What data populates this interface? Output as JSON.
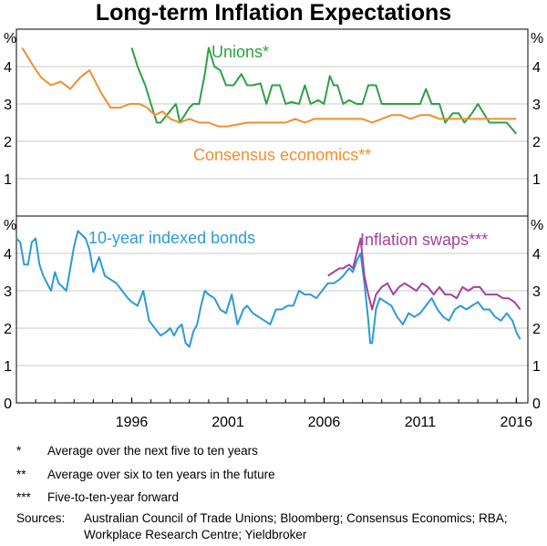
{
  "title": "Long-term Inflation Expectations",
  "colors": {
    "unions": "#2ea043",
    "consensus": "#f28e2b",
    "bonds": "#2b9bd6",
    "swaps": "#a3439c"
  },
  "chart_data": [
    {
      "type": "line",
      "panel": "top",
      "ylabel_left": "%",
      "ylabel_right": "%",
      "ylim": [
        0,
        5
      ],
      "yticks": [
        "1",
        "2",
        "3",
        "4"
      ],
      "labels": {
        "unions": "Unions*",
        "consensus": "Consensus economics**"
      },
      "series": [
        {
          "name": "Unions*",
          "color_key": "unions",
          "x": [
            1996.0,
            1996.3,
            1996.7,
            1997.0,
            1997.3,
            1997.5,
            1998.3,
            1998.5,
            1999.0,
            1999.2,
            1999.5,
            1999.8,
            2000.0,
            2000.3,
            2000.6,
            2000.9,
            2001.3,
            2001.7,
            2002.0,
            2002.3,
            2002.7,
            2003.0,
            2003.3,
            2003.7,
            2004.0,
            2004.3,
            2004.7,
            2005.0,
            2005.3,
            2005.7,
            2006.0,
            2006.3,
            2006.5,
            2006.7,
            2007.0,
            2007.3,
            2007.7,
            2008.0,
            2008.3,
            2008.7,
            2009.0,
            2009.5,
            2010.0,
            2010.5,
            2011.0,
            2011.3,
            2011.6,
            2012.0,
            2012.3,
            2012.7,
            2013.0,
            2013.3,
            2013.7,
            2014.0,
            2014.3,
            2014.6,
            2015.0,
            2015.5,
            2016.0
          ],
          "values": [
            4.5,
            4.0,
            3.5,
            3.0,
            2.5,
            2.5,
            3.0,
            2.5,
            2.9,
            3.0,
            3.0,
            3.8,
            4.5,
            4.0,
            3.9,
            3.5,
            3.5,
            3.8,
            3.5,
            3.5,
            3.55,
            3.0,
            3.5,
            3.5,
            3.0,
            3.05,
            3.0,
            3.5,
            3.0,
            3.1,
            3.0,
            3.75,
            3.5,
            3.5,
            3.0,
            3.1,
            3.0,
            3.0,
            3.5,
            3.5,
            3.0,
            3.0,
            3.0,
            3.0,
            3.0,
            3.4,
            3.0,
            3.0,
            2.5,
            2.75,
            2.75,
            2.5,
            2.75,
            3.0,
            2.75,
            2.5,
            2.5,
            2.5,
            2.2
          ]
        },
        {
          "name": "Consensus economics**",
          "color_key": "consensus",
          "x": [
            1990.3,
            1990.9,
            1991.3,
            1991.8,
            1992.3,
            1992.8,
            1993.3,
            1993.8,
            1994.4,
            1994.9,
            1995.4,
            1995.9,
            1996.4,
            1996.8,
            1997.2,
            1997.6,
            1998.0,
            1998.5,
            1999.0,
            1999.5,
            2000.0,
            2000.5,
            2001.0,
            2002.0,
            2003.0,
            2004.0,
            2004.5,
            2005.0,
            2005.5,
            2006.0,
            2007.0,
            2008.0,
            2008.5,
            2009.0,
            2009.5,
            2010.0,
            2010.5,
            2011.0,
            2011.5,
            2012.0,
            2012.5,
            2013.0,
            2013.5,
            2014.0,
            2015.0,
            2016.0
          ],
          "values": [
            4.5,
            4.0,
            3.7,
            3.5,
            3.6,
            3.4,
            3.7,
            3.9,
            3.3,
            2.9,
            2.9,
            3.0,
            3.0,
            2.9,
            2.7,
            2.8,
            2.6,
            2.5,
            2.6,
            2.5,
            2.5,
            2.4,
            2.4,
            2.5,
            2.5,
            2.5,
            2.6,
            2.5,
            2.6,
            2.6,
            2.6,
            2.6,
            2.5,
            2.6,
            2.7,
            2.7,
            2.6,
            2.7,
            2.7,
            2.6,
            2.6,
            2.6,
            2.6,
            2.6,
            2.6,
            2.6
          ]
        }
      ]
    },
    {
      "type": "line",
      "panel": "bottom",
      "ylabel_left": "%",
      "ylabel_right": "%",
      "ylim": [
        0,
        5
      ],
      "yticks": [
        "0",
        "1",
        "2",
        "3",
        "4"
      ],
      "xlim": [
        1990.0,
        2016.6
      ],
      "xticks": [
        "1996",
        "2001",
        "2006",
        "2011",
        "2016"
      ],
      "labels": {
        "bonds": "10-year indexed bonds",
        "swaps": "Inflation swaps***"
      },
      "series": [
        {
          "name": "10-year indexed bonds",
          "color_key": "bonds",
          "x": [
            1990.0,
            1990.2,
            1990.4,
            1990.6,
            1990.8,
            1991.0,
            1991.2,
            1991.4,
            1991.6,
            1991.8,
            1992.0,
            1992.2,
            1992.4,
            1992.6,
            1992.8,
            1993.0,
            1993.2,
            1993.4,
            1993.6,
            1993.8,
            1994.0,
            1994.3,
            1994.6,
            1994.9,
            1995.2,
            1995.5,
            1995.8,
            1996.0,
            1996.3,
            1996.6,
            1996.9,
            1997.2,
            1997.5,
            1997.8,
            1998.0,
            1998.2,
            1998.4,
            1998.6,
            1998.8,
            1999.0,
            1999.2,
            1999.4,
            1999.6,
            1999.8,
            2000.0,
            2000.3,
            2000.6,
            2000.9,
            2001.2,
            2001.5,
            2001.8,
            2002.0,
            2002.3,
            2002.6,
            2002.9,
            2003.2,
            2003.5,
            2003.8,
            2004.1,
            2004.4,
            2004.7,
            2005.0,
            2005.3,
            2005.6,
            2005.9,
            2006.2,
            2006.5,
            2006.8,
            2007.0,
            2007.3,
            2007.5,
            2007.7,
            2007.9,
            2008.1,
            2008.3,
            2008.4,
            2008.5,
            2008.7,
            2008.9,
            2009.2,
            2009.5,
            2009.8,
            2010.1,
            2010.4,
            2010.7,
            2011.0,
            2011.3,
            2011.6,
            2011.9,
            2012.2,
            2012.5,
            2012.8,
            2013.1,
            2013.4,
            2013.7,
            2014.0,
            2014.3,
            2014.6,
            2014.9,
            2015.2,
            2015.5,
            2015.8,
            2016.0,
            2016.2
          ],
          "values": [
            4.4,
            4.3,
            3.7,
            3.7,
            4.3,
            4.4,
            3.7,
            3.4,
            3.2,
            3.0,
            3.5,
            3.2,
            3.1,
            3.0,
            3.6,
            4.2,
            4.6,
            4.5,
            4.4,
            4.1,
            3.5,
            3.9,
            3.4,
            3.3,
            3.2,
            3.0,
            2.8,
            2.7,
            2.6,
            3.0,
            2.2,
            2.0,
            1.8,
            1.9,
            2.0,
            1.8,
            2.0,
            2.1,
            1.6,
            1.5,
            1.9,
            2.1,
            2.6,
            3.0,
            2.9,
            2.8,
            2.5,
            2.4,
            2.9,
            2.1,
            2.5,
            2.6,
            2.4,
            2.3,
            2.2,
            2.1,
            2.5,
            2.5,
            2.6,
            2.6,
            3.0,
            2.9,
            2.9,
            2.8,
            3.0,
            3.2,
            3.2,
            3.3,
            3.4,
            3.6,
            3.5,
            3.8,
            4.0,
            3.2,
            2.2,
            1.6,
            1.6,
            2.5,
            2.8,
            2.7,
            2.6,
            2.3,
            2.1,
            2.4,
            2.3,
            2.4,
            2.6,
            2.8,
            2.5,
            2.3,
            2.2,
            2.5,
            2.6,
            2.5,
            2.6,
            2.7,
            2.5,
            2.5,
            2.3,
            2.2,
            2.4,
            2.2,
            1.9,
            1.7
          ]
        },
        {
          "name": "Inflation swaps***",
          "color_key": "swaps",
          "x": [
            2006.2,
            2006.5,
            2006.8,
            2007.0,
            2007.3,
            2007.5,
            2007.7,
            2007.9,
            2008.1,
            2008.3,
            2008.5,
            2008.7,
            2009.0,
            2009.3,
            2009.6,
            2009.9,
            2010.2,
            2010.5,
            2010.8,
            2011.1,
            2011.4,
            2011.7,
            2012.0,
            2012.3,
            2012.6,
            2012.9,
            2013.2,
            2013.5,
            2013.8,
            2014.1,
            2014.4,
            2014.7,
            2015.0,
            2015.3,
            2015.6,
            2015.9,
            2016.2
          ],
          "values": [
            3.4,
            3.5,
            3.6,
            3.6,
            3.7,
            3.6,
            4.0,
            4.4,
            3.4,
            2.9,
            2.5,
            2.9,
            3.1,
            3.2,
            2.9,
            3.1,
            3.2,
            3.1,
            3.0,
            3.2,
            3.1,
            2.9,
            3.1,
            2.9,
            2.9,
            2.8,
            3.1,
            3.0,
            3.1,
            3.1,
            2.9,
            2.9,
            2.9,
            2.8,
            2.8,
            2.7,
            2.5
          ]
        }
      ]
    }
  ],
  "notes": [
    {
      "mark": "*",
      "text": "Average over the next five to ten years"
    },
    {
      "mark": "**",
      "text": "Average over six to ten years in the future"
    },
    {
      "mark": "***",
      "text": "Five-to-ten-year forward"
    }
  ],
  "sources": {
    "label": "Sources:",
    "text": "Australian Council of Trade Unions; Bloomberg; Consensus Economics; RBA; Workplace Research Centre; Yieldbroker"
  }
}
